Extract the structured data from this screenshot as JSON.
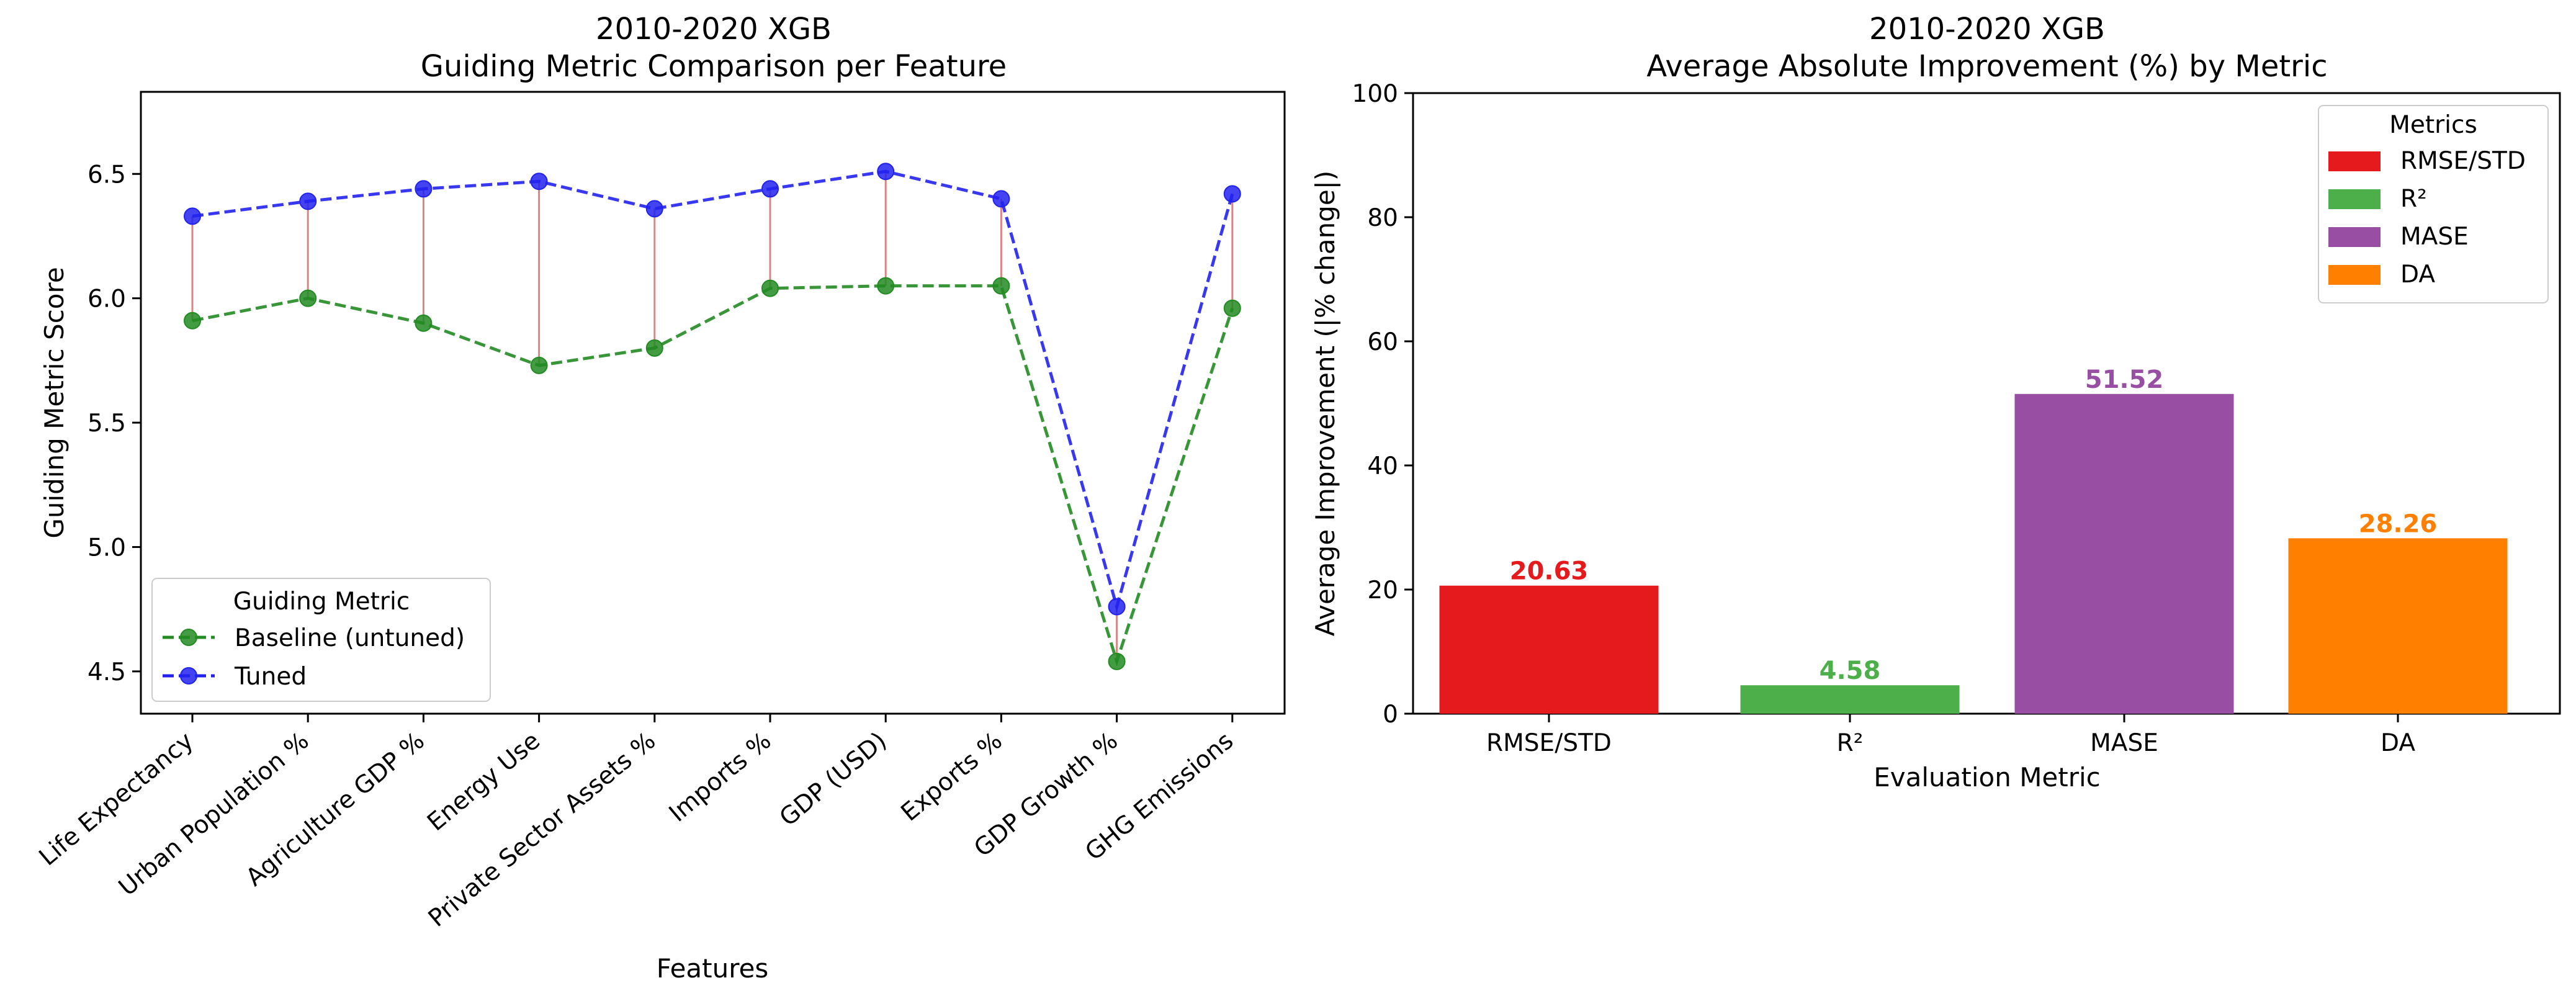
{
  "chart_data": [
    {
      "type": "line",
      "title": "2010-2020 XGB",
      "subtitle": "Guiding Metric Comparison per Feature",
      "xlabel": "Features",
      "ylabel": "Guiding Metric Score",
      "categories": [
        "Life Expectancy",
        "Urban Population %",
        "Agriculture GDP %",
        "Energy Use",
        "Private Sector Assets %",
        "Imports %",
        "GDP (USD)",
        "Exports %",
        "GDP Growth %",
        "GHG Emissions"
      ],
      "series": [
        {
          "name": "Baseline (untuned)",
          "color": "#228B22",
          "values": [
            5.91,
            6.0,
            5.9,
            5.73,
            5.8,
            6.04,
            6.05,
            6.05,
            4.54,
            5.96
          ]
        },
        {
          "name": "Tuned",
          "color": "#2222EE",
          "values": [
            6.33,
            6.39,
            6.44,
            6.47,
            6.36,
            6.44,
            6.51,
            6.4,
            4.76,
            6.42
          ]
        }
      ],
      "connector_color": "#CD5C5C",
      "ylim": [
        4.33,
        6.83
      ],
      "yticks": [
        "4.5",
        "5.0",
        "5.5",
        "6.0",
        "6.5"
      ],
      "legend": {
        "title": "Guiding Metric",
        "placement": "lower-left"
      },
      "grid": false
    },
    {
      "type": "bar",
      "title": "2010-2020 XGB",
      "subtitle": "Average Absolute Improvement (%) by Metric",
      "xlabel": "Evaluation Metric",
      "ylabel": "Average Improvement (|% change|)",
      "categories": [
        "RMSE/STD",
        "R²",
        "MASE",
        "DA"
      ],
      "values": [
        20.63,
        4.58,
        51.52,
        28.26
      ],
      "value_labels": [
        "20.63",
        "4.58",
        "51.52",
        "28.26"
      ],
      "colors": [
        "#E41A1C",
        "#4DAF4A",
        "#984EA3",
        "#FF7F00"
      ],
      "ylim": [
        0,
        100
      ],
      "yticks": [
        "0",
        "20",
        "40",
        "60",
        "80",
        "100"
      ],
      "legend": {
        "title": "Metrics",
        "placement": "top-right",
        "entries": [
          "RMSE/STD",
          "R²",
          "MASE",
          "DA"
        ]
      },
      "grid": false
    }
  ]
}
